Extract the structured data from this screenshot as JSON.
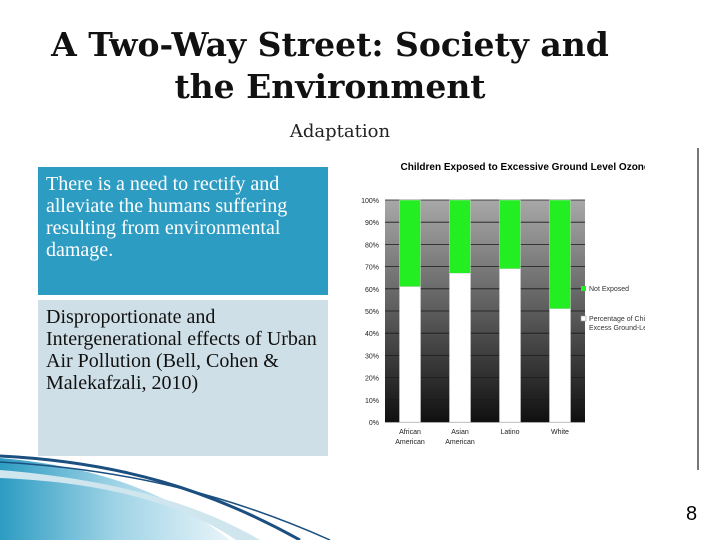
{
  "slide": {
    "title_line1": "A Two-Way Street: Society and",
    "title_line2": "the Environment",
    "subtitle": "Adaptation",
    "box1_text": "There is a need to rectify and alleviate the humans suffering resulting from environmental damage.",
    "box2_text": "Disproportionate and Intergenerational effects of Urban Air Pollution (Bell, Cohen & Malekafzali, 2010)",
    "page_number": "8"
  },
  "colors": {
    "box1_bg": "#2d9cc2",
    "box2_bg": "#cfdfe7",
    "green": "#22ee22",
    "white_bar": "#ffffff"
  },
  "chart_data": {
    "type": "bar",
    "stacked": true,
    "title": "Children Exposed to Excessive Ground Level Ozone",
    "categories": [
      [
        "African",
        "American"
      ],
      [
        "Asian",
        "American"
      ],
      [
        "Latino"
      ],
      [
        "White"
      ]
    ],
    "series": [
      {
        "name": "Percentage of Children Exposed to Excess Ground-Level Ozone",
        "values": [
          61,
          67,
          69,
          51
        ],
        "color": "#ffffff"
      },
      {
        "name": "Not Exposed",
        "values": [
          39,
          33,
          31,
          49
        ],
        "color": "#22ee22"
      }
    ],
    "ylim": [
      0,
      100
    ],
    "yticks": [
      "0%",
      "10%",
      "20%",
      "30%",
      "40%",
      "50%",
      "60%",
      "70%",
      "80%",
      "90%",
      "100%"
    ],
    "legend": [
      "Not Exposed",
      "Percentage of Children Exposed to Excess Ground-Level Ozone"
    ],
    "legend_position": "right"
  }
}
